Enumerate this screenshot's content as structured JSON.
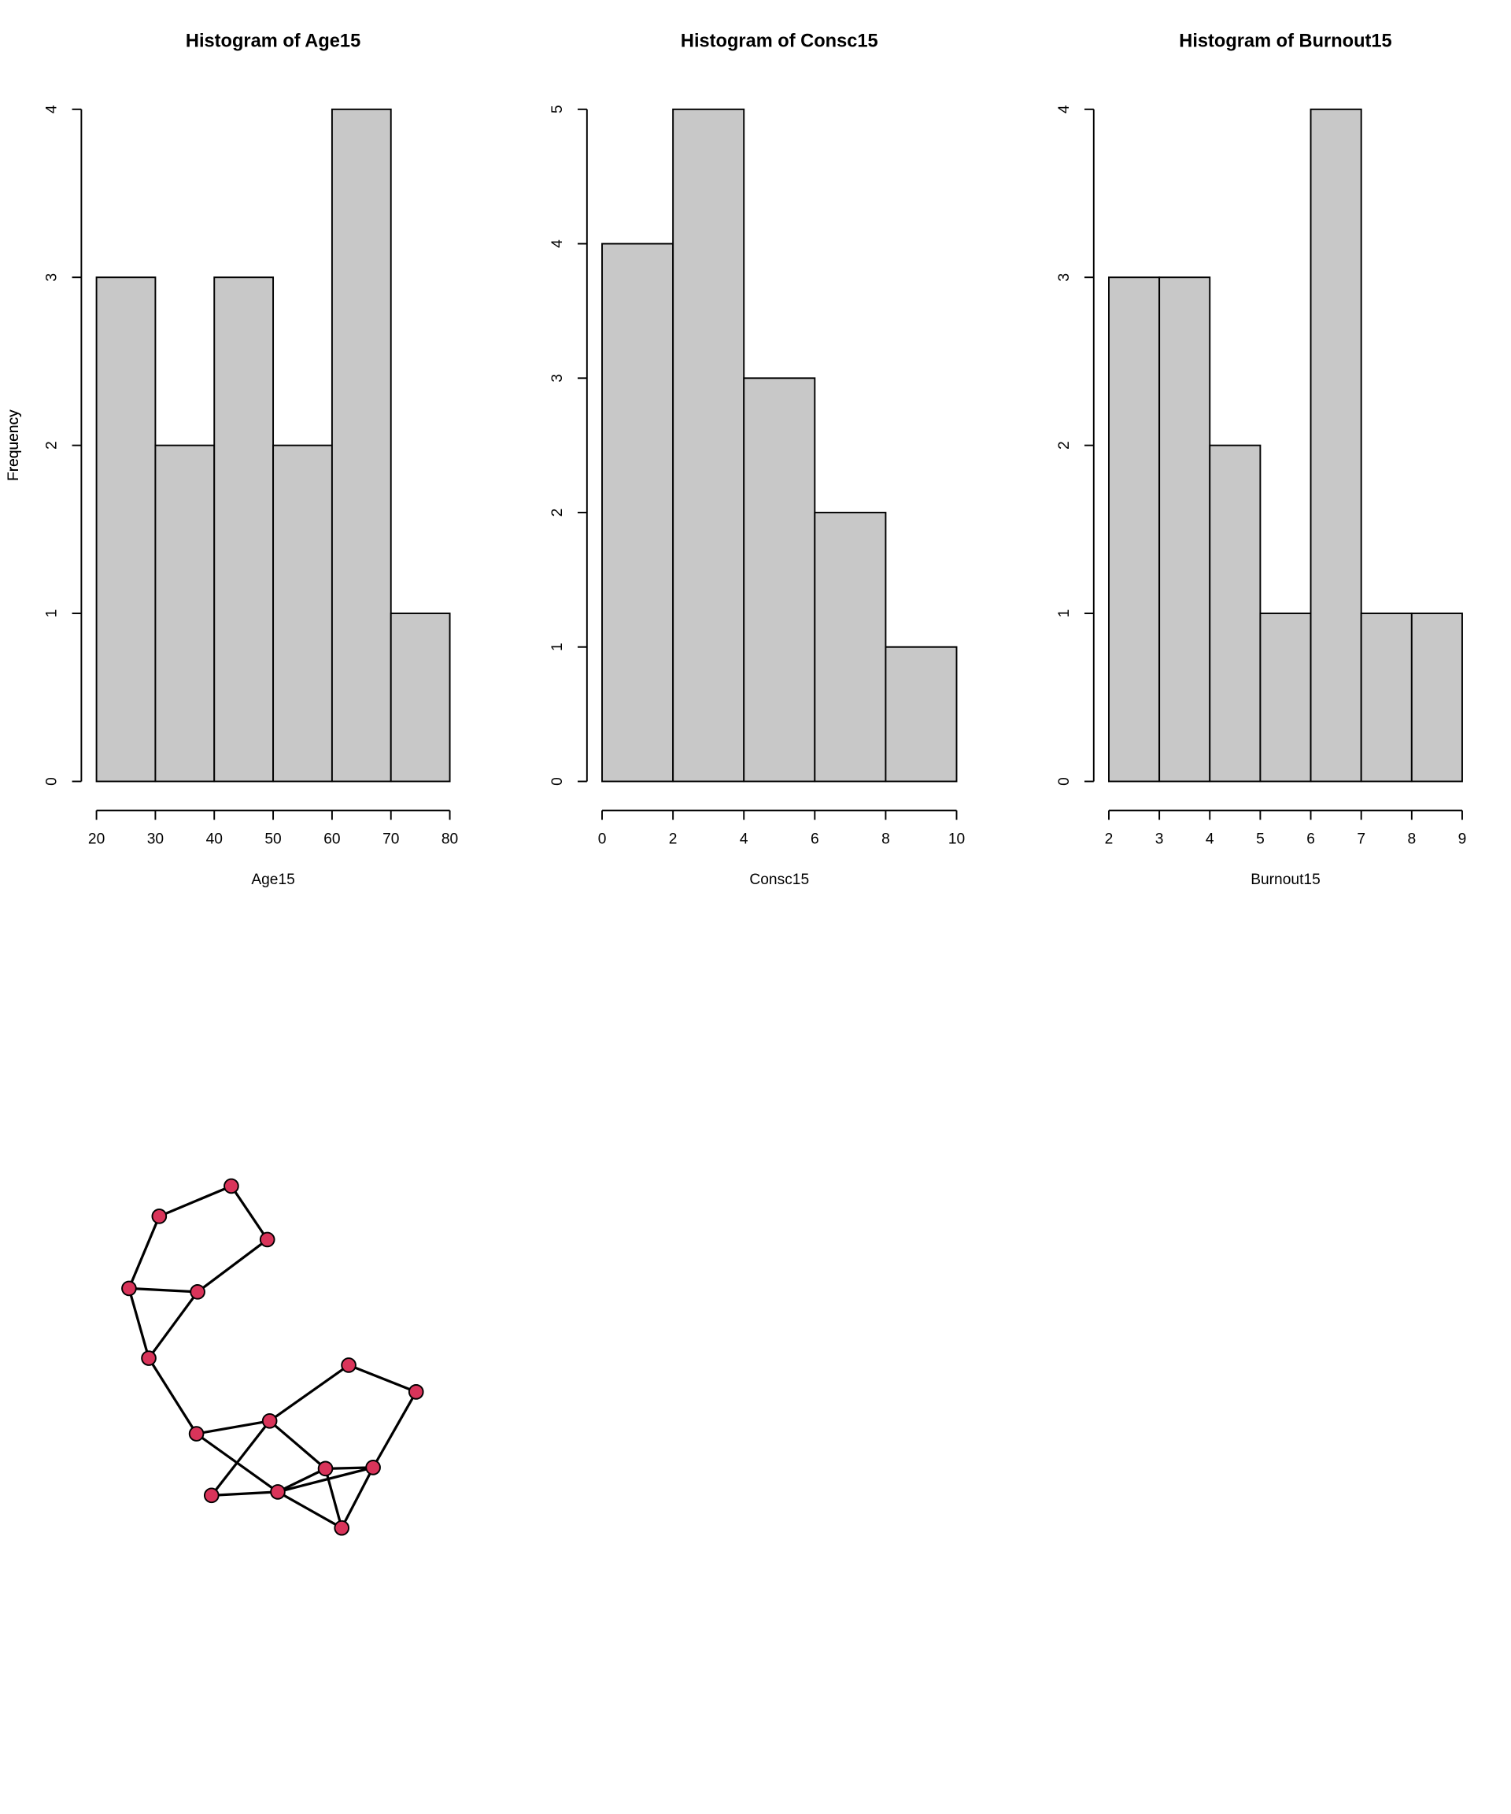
{
  "chart_data": [
    {
      "type": "histogram",
      "title": "Histogram of Age15",
      "xlabel": "Age15",
      "ylabel": "Frequency",
      "bins": [
        20,
        30,
        40,
        50,
        60,
        70,
        80
      ],
      "values": [
        3,
        2,
        3,
        2,
        4,
        1
      ],
      "color": "#c8c8c8",
      "xlim": [
        20,
        80
      ],
      "xticks": [
        20,
        30,
        40,
        50,
        60,
        70,
        80
      ],
      "ylim": [
        0,
        4
      ],
      "yticks": [
        0,
        1,
        2,
        3,
        4
      ]
    },
    {
      "type": "histogram",
      "title": "Histogram of Consc15",
      "xlabel": "Consc15",
      "ylabel": "Frequency",
      "bins": [
        0,
        2,
        4,
        6,
        8,
        10
      ],
      "values": [
        4,
        5,
        3,
        2,
        1
      ],
      "color": "#c8c8c8",
      "xlim": [
        0,
        10
      ],
      "xticks": [
        0,
        2,
        4,
        6,
        8,
        10
      ],
      "ylim": [
        0,
        5
      ],
      "yticks": [
        0,
        1,
        2,
        3,
        4,
        5
      ]
    },
    {
      "type": "histogram",
      "title": "Histogram of Burnout15",
      "xlabel": "Burnout15",
      "ylabel": "Frequency",
      "bins": [
        2,
        3,
        4,
        5,
        6,
        7,
        8,
        9
      ],
      "values": [
        3,
        3,
        2,
        1,
        4,
        1,
        1
      ],
      "color": "#c8c8c8",
      "xlim": [
        2,
        9
      ],
      "xticks": [
        2,
        3,
        4,
        5,
        6,
        7,
        8,
        9
      ],
      "ylim": [
        0,
        4
      ],
      "yticks": [
        0,
        1,
        2,
        3,
        4
      ]
    }
  ]
}
